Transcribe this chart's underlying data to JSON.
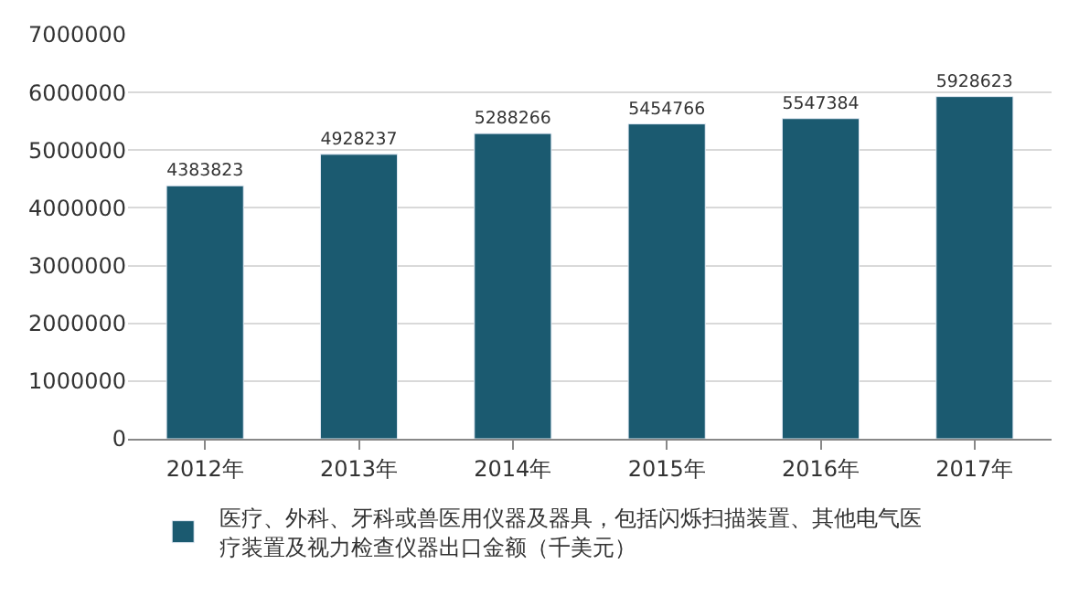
{
  "chart_data": {
    "type": "bar",
    "categories": [
      "2012年",
      "2013年",
      "2014年",
      "2015年",
      "2016年",
      "2017年"
    ],
    "series": [
      {
        "name": "医疗、外科、牙科或兽医用仪器及器具，包括闪烁扫描装置、其他电气医疗装置及视力检查仪器出口金额（千美元）",
        "color": "#1b5a70",
        "values": [
          4383823,
          4928237,
          5288266,
          5454766,
          5547384,
          5928623
        ]
      }
    ],
    "ylim": [
      0,
      7000000
    ],
    "yticks": [
      0,
      1000000,
      2000000,
      3000000,
      4000000,
      5000000,
      6000000,
      7000000
    ],
    "grid": "y",
    "legend": "bottom",
    "data_labels": true
  }
}
